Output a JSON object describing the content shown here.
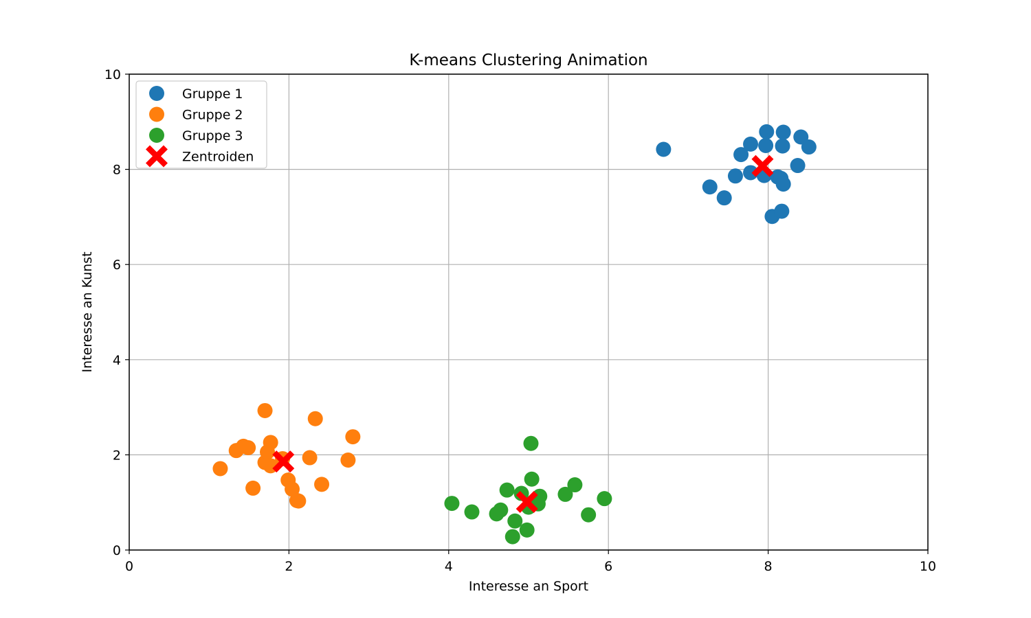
{
  "chart_data": {
    "type": "scatter",
    "title": "K-means Clustering Animation",
    "xlabel": "Interesse an Sport",
    "ylabel": "Interesse an Kunst",
    "xlim": [
      0,
      10
    ],
    "ylim": [
      0,
      10
    ],
    "xticks": [
      0,
      2,
      4,
      6,
      8,
      10
    ],
    "yticks": [
      0,
      2,
      4,
      6,
      8,
      10
    ],
    "grid": true,
    "legend_position": "top-left",
    "series": [
      {
        "name": "Gruppe 1",
        "color": "#1f77b4",
        "marker": "circle",
        "points": [
          [
            6.69,
            8.42
          ],
          [
            7.27,
            7.63
          ],
          [
            7.45,
            7.4
          ],
          [
            7.59,
            7.86
          ],
          [
            7.66,
            8.31
          ],
          [
            7.78,
            8.53
          ],
          [
            7.78,
            7.93
          ],
          [
            7.95,
            7.87
          ],
          [
            7.97,
            8.5
          ],
          [
            7.98,
            8.79
          ],
          [
            8.05,
            7.01
          ],
          [
            8.12,
            7.84
          ],
          [
            8.16,
            7.81
          ],
          [
            8.17,
            7.12
          ],
          [
            8.18,
            8.49
          ],
          [
            8.19,
            7.69
          ],
          [
            8.19,
            8.78
          ],
          [
            8.37,
            8.08
          ],
          [
            8.41,
            8.68
          ],
          [
            8.51,
            8.47
          ]
        ]
      },
      {
        "name": "Gruppe 2",
        "color": "#ff7f0e",
        "marker": "circle",
        "points": [
          [
            1.14,
            1.71
          ],
          [
            1.34,
            2.09
          ],
          [
            1.43,
            2.18
          ],
          [
            1.49,
            2.15
          ],
          [
            1.55,
            1.3
          ],
          [
            1.7,
            2.93
          ],
          [
            1.7,
            1.84
          ],
          [
            1.73,
            2.06
          ],
          [
            1.77,
            2.26
          ],
          [
            1.77,
            1.77
          ],
          [
            1.99,
            1.47
          ],
          [
            2.04,
            1.28
          ],
          [
            2.1,
            1.04
          ],
          [
            2.12,
            1.03
          ],
          [
            2.26,
            1.94
          ],
          [
            2.33,
            2.76
          ],
          [
            2.41,
            1.38
          ],
          [
            2.74,
            1.89
          ],
          [
            2.8,
            2.38
          ],
          [
            1.92,
            1.92
          ]
        ]
      },
      {
        "name": "Gruppe 3",
        "color": "#2ca02c",
        "marker": "circle",
        "points": [
          [
            4.04,
            0.98
          ],
          [
            4.29,
            0.8
          ],
          [
            4.6,
            0.76
          ],
          [
            4.65,
            0.84
          ],
          [
            4.73,
            1.26
          ],
          [
            4.8,
            0.28
          ],
          [
            4.83,
            0.61
          ],
          [
            4.91,
            1.19
          ],
          [
            4.98,
            0.42
          ],
          [
            5.0,
            0.9
          ],
          [
            5.03,
            2.24
          ],
          [
            5.04,
            1.49
          ],
          [
            5.12,
            0.97
          ],
          [
            5.14,
            1.13
          ],
          [
            5.46,
            1.17
          ],
          [
            5.58,
            1.37
          ],
          [
            5.75,
            0.74
          ],
          [
            5.95,
            1.08
          ]
        ]
      },
      {
        "name": "Zentroiden",
        "color": "#ff0000",
        "marker": "X",
        "points": [
          [
            7.93,
            8.07
          ],
          [
            1.93,
            1.86
          ],
          [
            4.98,
            1.01
          ]
        ]
      }
    ]
  }
}
